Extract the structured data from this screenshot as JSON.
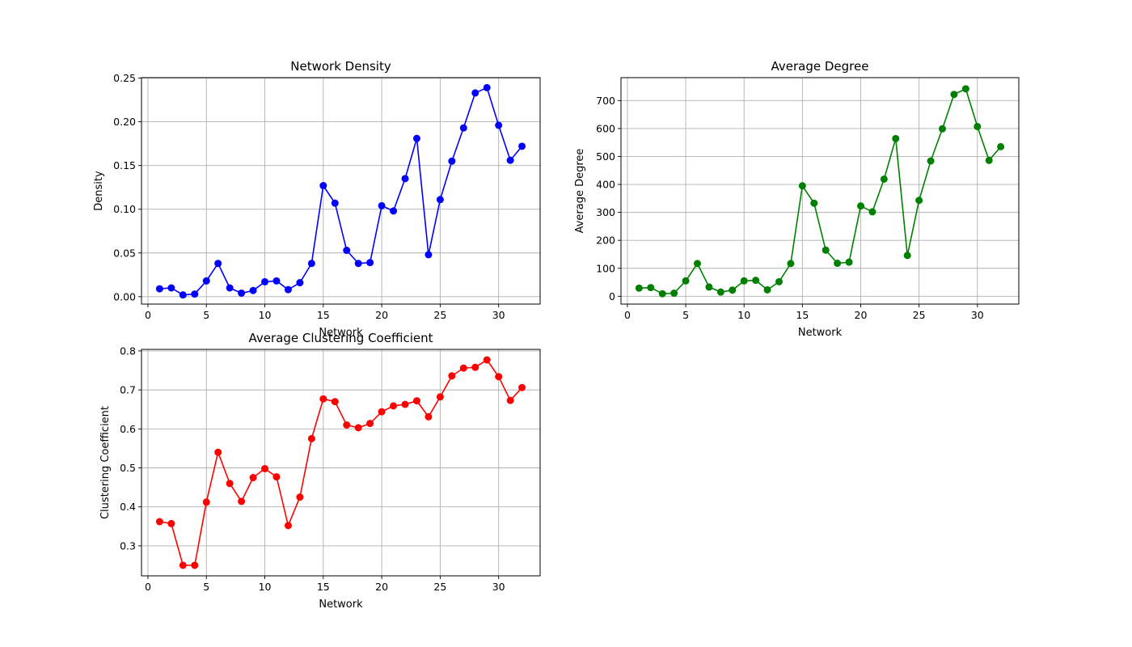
{
  "chart_data": [
    {
      "type": "line",
      "title": "Network Density",
      "xlabel": "Network",
      "ylabel": "Density",
      "xlim": [
        -0.55,
        33.55
      ],
      "ylim": [
        -0.0085,
        0.2505
      ],
      "xticks": [
        0,
        5,
        10,
        15,
        20,
        25,
        30
      ],
      "yticks": [
        0.0,
        0.05,
        0.1,
        0.15,
        0.2,
        0.25
      ],
      "ytick_labels": [
        "0.00",
        "0.05",
        "0.10",
        "0.15",
        "0.20",
        "0.25"
      ],
      "grid": true,
      "marker": "circle",
      "color": "#0000ff",
      "x": [
        1,
        2,
        3,
        4,
        5,
        6,
        7,
        8,
        9,
        10,
        11,
        12,
        13,
        14,
        15,
        16,
        17,
        18,
        19,
        20,
        21,
        22,
        23,
        24,
        25,
        26,
        27,
        28,
        29,
        30,
        31,
        32
      ],
      "values": [
        0.009,
        0.01,
        0.002,
        0.003,
        0.018,
        0.038,
        0.01,
        0.004,
        0.007,
        0.017,
        0.018,
        0.008,
        0.016,
        0.038,
        0.127,
        0.107,
        0.053,
        0.038,
        0.039,
        0.104,
        0.098,
        0.135,
        0.181,
        0.048,
        0.111,
        0.155,
        0.193,
        0.233,
        0.239,
        0.196,
        0.156,
        0.172
      ]
    },
    {
      "type": "line",
      "title": "Average Degree",
      "xlabel": "Network",
      "ylabel": "Average Degree",
      "xlim": [
        -0.55,
        33.55
      ],
      "ylim": [
        -28,
        782
      ],
      "xticks": [
        0,
        5,
        10,
        15,
        20,
        25,
        30
      ],
      "yticks": [
        0,
        100,
        200,
        300,
        400,
        500,
        600,
        700
      ],
      "ytick_labels": [
        "0",
        "100",
        "200",
        "300",
        "400",
        "500",
        "600",
        "700"
      ],
      "grid": true,
      "marker": "circle",
      "color": "#008000",
      "x": [
        1,
        2,
        3,
        4,
        5,
        6,
        7,
        8,
        9,
        10,
        11,
        12,
        13,
        14,
        15,
        16,
        17,
        18,
        19,
        20,
        21,
        22,
        23,
        24,
        25,
        26,
        27,
        28,
        29,
        30,
        31,
        32
      ],
      "values": [
        29,
        31,
        9,
        11,
        55,
        117,
        33,
        15,
        22,
        55,
        57,
        23,
        52,
        117,
        395,
        333,
        165,
        118,
        122,
        323,
        302,
        419,
        564,
        146,
        343,
        484,
        599,
        722,
        742,
        607,
        486,
        535
      ]
    },
    {
      "type": "line",
      "title": "Average Clustering Coefficient",
      "xlabel": "Network",
      "ylabel": "Clustering Coefficient",
      "xlim": [
        -0.55,
        33.55
      ],
      "ylim": [
        0.223,
        0.804
      ],
      "xticks": [
        0,
        5,
        10,
        15,
        20,
        25,
        30
      ],
      "yticks": [
        0.3,
        0.4,
        0.5,
        0.6,
        0.7,
        0.8
      ],
      "ytick_labels": [
        "0.3",
        "0.4",
        "0.5",
        "0.6",
        "0.7",
        "0.8"
      ],
      "grid": true,
      "marker": "circle",
      "color": "#ff0000",
      "x": [
        1,
        2,
        3,
        4,
        5,
        6,
        7,
        8,
        9,
        10,
        11,
        12,
        13,
        14,
        15,
        16,
        17,
        18,
        19,
        20,
        21,
        22,
        23,
        24,
        25,
        26,
        27,
        28,
        29,
        30,
        31,
        32
      ],
      "values": [
        0.362,
        0.357,
        0.25,
        0.25,
        0.412,
        0.54,
        0.46,
        0.414,
        0.475,
        0.498,
        0.477,
        0.352,
        0.425,
        0.575,
        0.677,
        0.67,
        0.61,
        0.603,
        0.614,
        0.644,
        0.659,
        0.663,
        0.672,
        0.631,
        0.682,
        0.736,
        0.756,
        0.758,
        0.777,
        0.734,
        0.673,
        0.706
      ]
    }
  ]
}
